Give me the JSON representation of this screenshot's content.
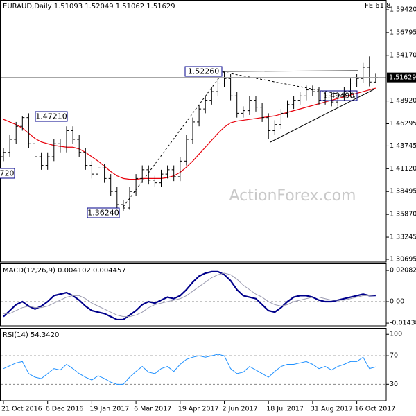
{
  "chart_data": [
    {
      "type": "ohlc",
      "title": "EURAUD,Daily  1.51093 1.52049 1.51062 1.51629",
      "corner_label": "FE 61.8",
      "watermark": "ActionForex.com",
      "color": "#000000",
      "open": [
        1.425,
        1.43,
        1.445,
        1.46,
        1.47,
        1.44,
        1.425,
        1.415,
        1.425,
        1.44,
        1.435,
        1.455,
        1.445,
        1.43,
        1.415,
        1.405,
        1.412,
        1.4,
        1.385,
        1.37,
        1.366,
        1.385,
        1.4,
        1.41,
        1.398,
        1.395,
        1.405,
        1.41,
        1.402,
        1.42,
        1.445,
        1.465,
        1.48,
        1.49,
        1.5,
        1.51,
        1.515,
        1.495,
        1.475,
        1.478,
        1.49,
        1.482,
        1.47,
        1.455,
        1.462,
        1.475,
        1.485,
        1.49,
        1.495,
        1.502,
        1.5,
        1.49,
        1.495,
        1.488,
        1.495,
        1.5,
        1.51,
        1.515,
        1.528,
        1.51093
      ],
      "high": [
        1.435,
        1.45,
        1.465,
        1.4721,
        1.475,
        1.445,
        1.43,
        1.43,
        1.445,
        1.445,
        1.46,
        1.46,
        1.45,
        1.435,
        1.42,
        1.417,
        1.417,
        1.405,
        1.39,
        1.375,
        1.39,
        1.405,
        1.415,
        1.415,
        1.403,
        1.41,
        1.415,
        1.415,
        1.425,
        1.45,
        1.47,
        1.485,
        1.495,
        1.505,
        1.515,
        1.5226,
        1.52,
        1.5,
        1.483,
        1.495,
        1.495,
        1.487,
        1.475,
        1.467,
        1.48,
        1.49,
        1.495,
        1.5,
        1.507,
        1.507,
        1.505,
        1.5,
        1.5,
        1.5,
        1.505,
        1.515,
        1.52,
        1.533,
        1.5405,
        1.52049
      ],
      "low": [
        1.42,
        1.425,
        1.44,
        1.455,
        1.435,
        1.42,
        1.41,
        1.41,
        1.42,
        1.43,
        1.43,
        1.44,
        1.425,
        1.41,
        1.4,
        1.4,
        1.395,
        1.38,
        1.365,
        1.3624,
        1.364,
        1.38,
        1.395,
        1.393,
        1.39,
        1.39,
        1.4,
        1.397,
        1.397,
        1.415,
        1.44,
        1.46,
        1.475,
        1.485,
        1.495,
        1.505,
        1.49,
        1.47,
        1.47,
        1.473,
        1.477,
        1.465,
        1.445,
        1.45,
        1.457,
        1.47,
        1.48,
        1.485,
        1.49,
        1.495,
        1.485,
        1.485,
        1.483,
        1.483,
        1.49,
        1.495,
        1.505,
        1.51,
        1.506,
        1.51062
      ],
      "close": [
        1.43,
        1.445,
        1.46,
        1.47,
        1.44,
        1.425,
        1.415,
        1.425,
        1.44,
        1.435,
        1.455,
        1.445,
        1.43,
        1.415,
        1.405,
        1.412,
        1.4,
        1.385,
        1.37,
        1.366,
        1.385,
        1.4,
        1.41,
        1.398,
        1.395,
        1.405,
        1.41,
        1.402,
        1.42,
        1.445,
        1.465,
        1.48,
        1.49,
        1.5,
        1.51,
        1.515,
        1.495,
        1.475,
        1.478,
        1.49,
        1.482,
        1.47,
        1.455,
        1.462,
        1.475,
        1.485,
        1.49,
        1.495,
        1.502,
        1.5,
        1.49,
        1.495,
        1.488,
        1.495,
        1.5,
        1.51,
        1.515,
        1.528,
        1.511,
        1.51629
      ],
      "moving_average": {
        "color": "#e8000b",
        "values": [
          1.468,
          1.465,
          1.462,
          1.458,
          1.452,
          1.446,
          1.442,
          1.44,
          1.438,
          1.437,
          1.436,
          1.436,
          1.434,
          1.43,
          1.425,
          1.42,
          1.414,
          1.408,
          1.403,
          1.4,
          1.399,
          1.399,
          1.4,
          1.4,
          1.4,
          1.4,
          1.401,
          1.403,
          1.407,
          1.413,
          1.42,
          1.428,
          1.436,
          1.444,
          1.452,
          1.459,
          1.464,
          1.466,
          1.467,
          1.468,
          1.469,
          1.47,
          1.471,
          1.472,
          1.474,
          1.476,
          1.478,
          1.48,
          1.482,
          1.484,
          1.486,
          1.488,
          1.49,
          1.492,
          1.494,
          1.496,
          1.498,
          1.5,
          1.502,
          1.504
        ]
      },
      "last_price": 1.51629,
      "annotations": [
        "1.52260",
        "1.47210",
        "1.36240",
        "720",
        "1.49490"
      ],
      "ylim": [
        1.30376,
        1.60537
      ],
      "yticks": [
        {
          "value": 1.5942,
          "label": "1.59420"
        },
        1.56795,
        {
          "value": 1.5417,
          "label": "1.54170"
        },
        {
          "value": 1.4892,
          "label": "1.48920"
        },
        1.46295,
        1.43745,
        {
          "value": 1.4112,
          "label": "1.41120"
        },
        1.38495,
        {
          "value": 1.3587,
          "label": "1.35870"
        },
        1.33245,
        1.30695
      ]
    },
    {
      "type": "line",
      "title": "MACD(12,26,9) 0.004102 0.004457",
      "series": [
        {
          "color": "#00008b",
          "values": [
            -0.01,
            -0.006,
            -0.002,
            0.0,
            -0.003,
            -0.005,
            -0.003,
            0.0,
            0.004,
            0.005,
            0.006,
            0.004,
            0.001,
            -0.003,
            -0.006,
            -0.007,
            -0.008,
            -0.01,
            -0.012,
            -0.012,
            -0.009,
            -0.006,
            -0.002,
            0.0,
            -0.001,
            0.001,
            0.003,
            0.002,
            0.004,
            0.008,
            0.013,
            0.017,
            0.019,
            0.02,
            0.02,
            0.018,
            0.014,
            0.008,
            0.004,
            0.003,
            0.002,
            -0.002,
            -0.006,
            -0.007,
            -0.004,
            0.0,
            0.003,
            0.004,
            0.004,
            0.003,
            0.001,
            0.0,
            0.0,
            0.001,
            0.002,
            0.003,
            0.004,
            0.005,
            0.004,
            0.004102
          ]
        },
        {
          "color": "#9a9ab0",
          "values": [
            -0.008,
            -0.008,
            -0.006,
            -0.004,
            -0.003,
            -0.004,
            -0.004,
            -0.003,
            -0.001,
            0.001,
            0.003,
            0.004,
            0.004,
            0.002,
            -0.001,
            -0.003,
            -0.005,
            -0.007,
            -0.009,
            -0.01,
            -0.01,
            -0.009,
            -0.007,
            -0.004,
            -0.002,
            -0.001,
            0.0,
            0.001,
            0.002,
            0.004,
            0.007,
            0.01,
            0.013,
            0.016,
            0.018,
            0.019,
            0.018,
            0.015,
            0.011,
            0.008,
            0.005,
            0.003,
            0.0,
            -0.002,
            -0.003,
            -0.002,
            0.0,
            0.001,
            0.002,
            0.003,
            0.003,
            0.002,
            0.001,
            0.001,
            0.001,
            0.002,
            0.003,
            0.004,
            0.004,
            0.004457
          ]
        }
      ],
      "ylim": [
        -0.0162,
        0.0255
      ],
      "yticks": [
        -0.014386,
        {
          "value": 0,
          "label": "0.00"
        },
        0.020827
      ]
    },
    {
      "type": "line",
      "title": "RSI(14) 54.3420",
      "categories": [
        "21 Oct 2016",
        null,
        null,
        null,
        null,
        null,
        null,
        "6 Dec 2016",
        null,
        null,
        null,
        null,
        null,
        null,
        "19 Jan 2017",
        null,
        null,
        null,
        null,
        null,
        null,
        "6 Mar 2017",
        null,
        null,
        null,
        null,
        null,
        null,
        "19 Apr 2017",
        null,
        null,
        null,
        null,
        null,
        null,
        "2 Jun 2017",
        null,
        null,
        null,
        null,
        null,
        null,
        "18 Jul 2017",
        null,
        null,
        null,
        null,
        null,
        null,
        "31 Aug 2017",
        null,
        null,
        null,
        null,
        null,
        null,
        "16 Oct 2017",
        null,
        null,
        null
      ],
      "series": [
        {
          "color": "#1e90ff",
          "values": [
            52,
            56,
            60,
            62,
            45,
            40,
            38,
            45,
            52,
            50,
            58,
            52,
            45,
            40,
            36,
            42,
            38,
            33,
            30,
            30,
            40,
            48,
            55,
            47,
            45,
            52,
            55,
            48,
            58,
            65,
            68,
            70,
            68,
            70,
            72,
            70,
            52,
            45,
            47,
            55,
            50,
            45,
            40,
            48,
            55,
            58,
            58,
            60,
            62,
            58,
            52,
            55,
            50,
            55,
            58,
            62,
            62,
            68,
            52,
            54.342
          ]
        }
      ],
      "ylim": [
        7,
        108
      ],
      "yticks": [
        30,
        70,
        100
      ]
    }
  ]
}
